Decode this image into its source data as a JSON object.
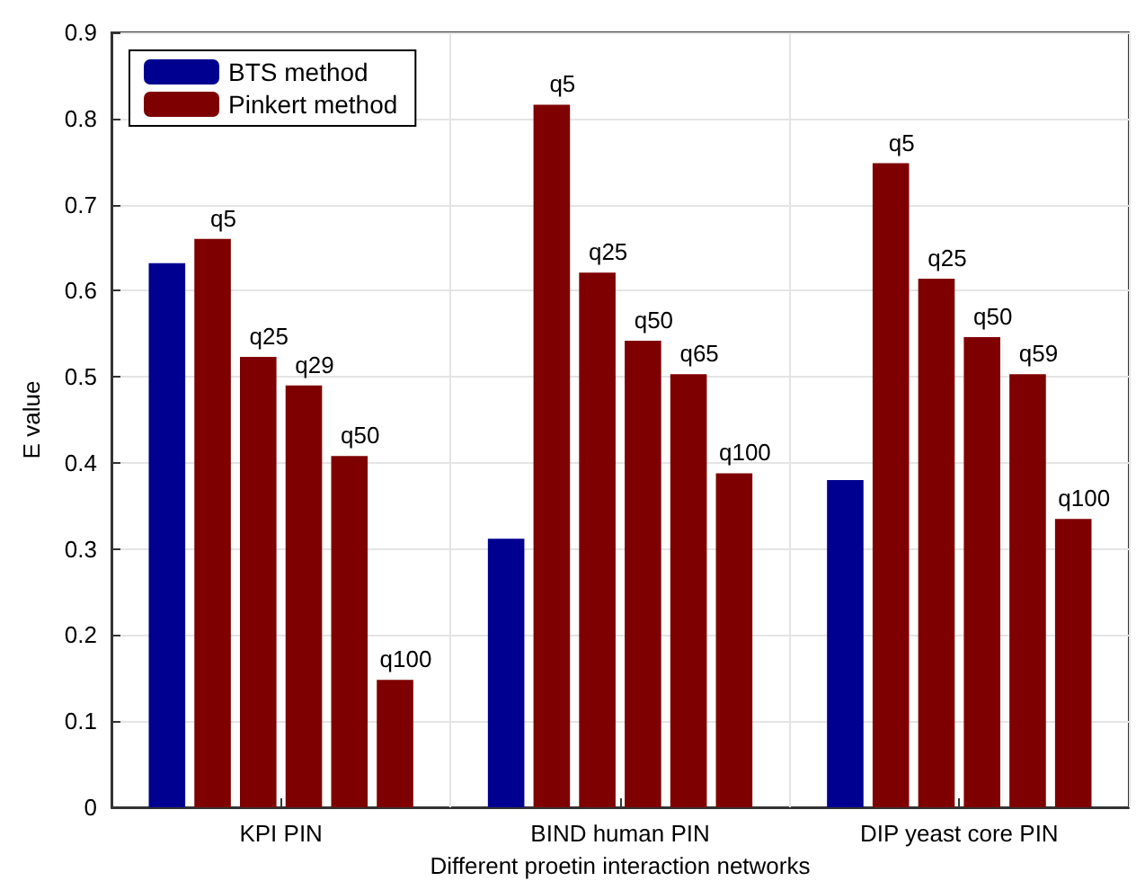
{
  "chart_data": {
    "type": "bar",
    "xlabel": "Different proetin interaction networks",
    "ylabel": "E value",
    "categories": [
      "KPI PIN",
      "BIND human PIN",
      "DIP yeast core PIN"
    ],
    "series": [
      {
        "name": "BTS method",
        "color": "#000090",
        "values": [
          0.632,
          0.312,
          0.38
        ]
      },
      {
        "name": "Pinkert method",
        "color": "#7f0000",
        "values": [
          0.66,
          0.816,
          0.748
        ],
        "value_labels": [
          "q5",
          "q5",
          "q5"
        ]
      },
      {
        "color": "#7f0000",
        "values": [
          0.523,
          0.621,
          0.614
        ],
        "value_labels": [
          "q25",
          "q25",
          "q25"
        ]
      },
      {
        "color": "#7f0000",
        "values": [
          0.49,
          0.542,
          0.546
        ],
        "value_labels": [
          "q29",
          "q50",
          "q50"
        ]
      },
      {
        "color": "#7f0000",
        "values": [
          0.408,
          0.503,
          0.503
        ],
        "value_labels": [
          "q50",
          "q65",
          "q59"
        ]
      },
      {
        "color": "#7f0000",
        "values": [
          0.148,
          0.388,
          0.335
        ],
        "value_labels": [
          "q100",
          "q100",
          "q100"
        ]
      }
    ],
    "ylim": [
      0,
      0.9
    ],
    "yticks": [
      0,
      0.1,
      0.2,
      0.3,
      0.4,
      0.5,
      0.6,
      0.7,
      0.8,
      0.9
    ],
    "grid": true,
    "legend": "top left"
  }
}
